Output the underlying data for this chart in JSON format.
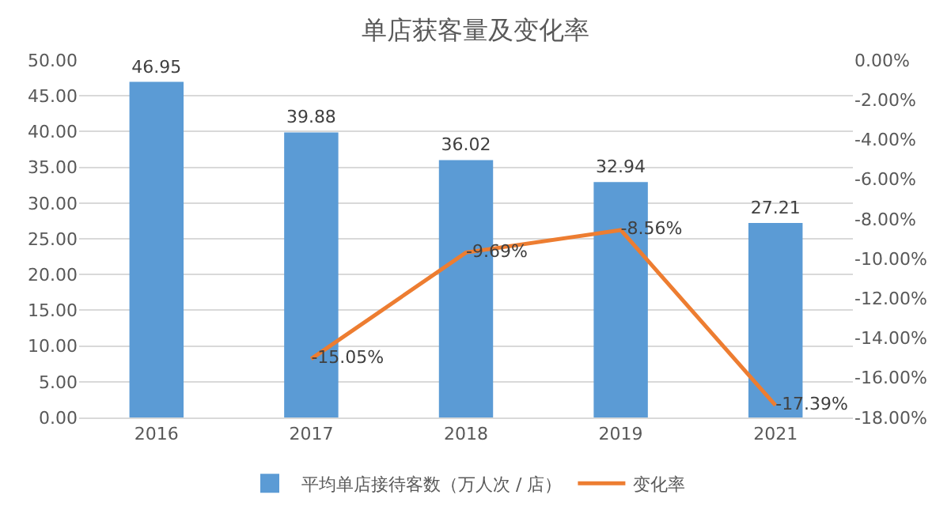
{
  "chart_data": {
    "type": "bar",
    "title": "单店获客量及变化率",
    "categories": [
      "2016",
      "2017",
      "2018",
      "2019",
      "2021"
    ],
    "series": [
      {
        "name": "平均单店接待客数（万人次 / 店）",
        "color": "#5b9bd5",
        "values": [
          46.95,
          39.88,
          36.02,
          32.94,
          27.21
        ],
        "value_labels": [
          "46.95",
          "39.88",
          "36.02",
          "32.94",
          "27.21"
        ]
      },
      {
        "name": "变化率",
        "type": "line",
        "axis": "y2",
        "color": "#ed7d31",
        "values": [
          null,
          -15.05,
          -9.69,
          -8.56,
          -17.39
        ],
        "value_labels": [
          null,
          "-15.05%",
          "-9.69%",
          "-8.56%",
          "-17.39%"
        ]
      }
    ],
    "ylim": [
      0,
      50
    ],
    "yticks": [
      {
        "value": 0,
        "label": "0.00"
      },
      {
        "value": 5,
        "label": "5.00"
      },
      {
        "value": 10,
        "label": "10.00"
      },
      {
        "value": 15,
        "label": "15.00"
      },
      {
        "value": 20,
        "label": "20.00"
      },
      {
        "value": 25,
        "label": "25.00"
      },
      {
        "value": 30,
        "label": "30.00"
      },
      {
        "value": 35,
        "label": "35.00"
      },
      {
        "value": 40,
        "label": "40.00"
      },
      {
        "value": 45,
        "label": "45.00"
      },
      {
        "value": 50,
        "label": "50.00"
      }
    ],
    "y2lim": [
      -18,
      0
    ],
    "y2ticks": [
      {
        "value": 0,
        "label": "0.00%"
      },
      {
        "value": -2,
        "label": "-2.00%"
      },
      {
        "value": -4,
        "label": "-4.00%"
      },
      {
        "value": -6,
        "label": "-6.00%"
      },
      {
        "value": -8,
        "label": "-8.00%"
      },
      {
        "value": -10,
        "label": "-10.00%"
      },
      {
        "value": -12,
        "label": "-12.00%"
      },
      {
        "value": -14,
        "label": "-14.00%"
      },
      {
        "value": -16,
        "label": "-16.00%"
      },
      {
        "value": -18,
        "label": "-18.00%"
      }
    ],
    "grid": "y",
    "legend": "bottom",
    "marker": "none",
    "line_style": "solid"
  }
}
